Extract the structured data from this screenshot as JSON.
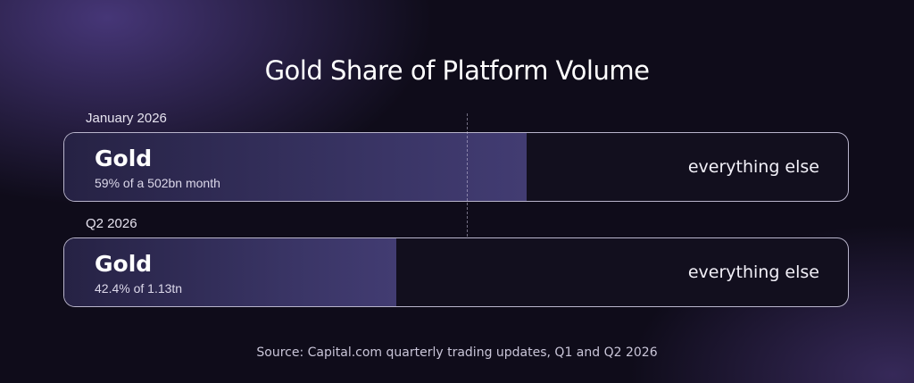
{
  "chart_data": {
    "type": "bar",
    "title": "Gold Share of Platform Volume",
    "unit": "%",
    "rows": [
      {
        "period": "January 2026",
        "share": 59,
        "segment_label": "Gold",
        "detail": "59% of a 502bn month",
        "remainder_label": "everything else"
      },
      {
        "period": "Q2 2026",
        "share": 42.4,
        "segment_label": "Gold",
        "detail": "42.4% of 1.13tn",
        "remainder_label": "everything else"
      }
    ],
    "source": "Source: Capital.com quarterly trading updates, Q1 and Q2 2026"
  },
  "colors": {
    "gold_fill": "#3a3566",
    "remainder_fill": "#120f1e",
    "bar_border": "#d7d2eb"
  }
}
